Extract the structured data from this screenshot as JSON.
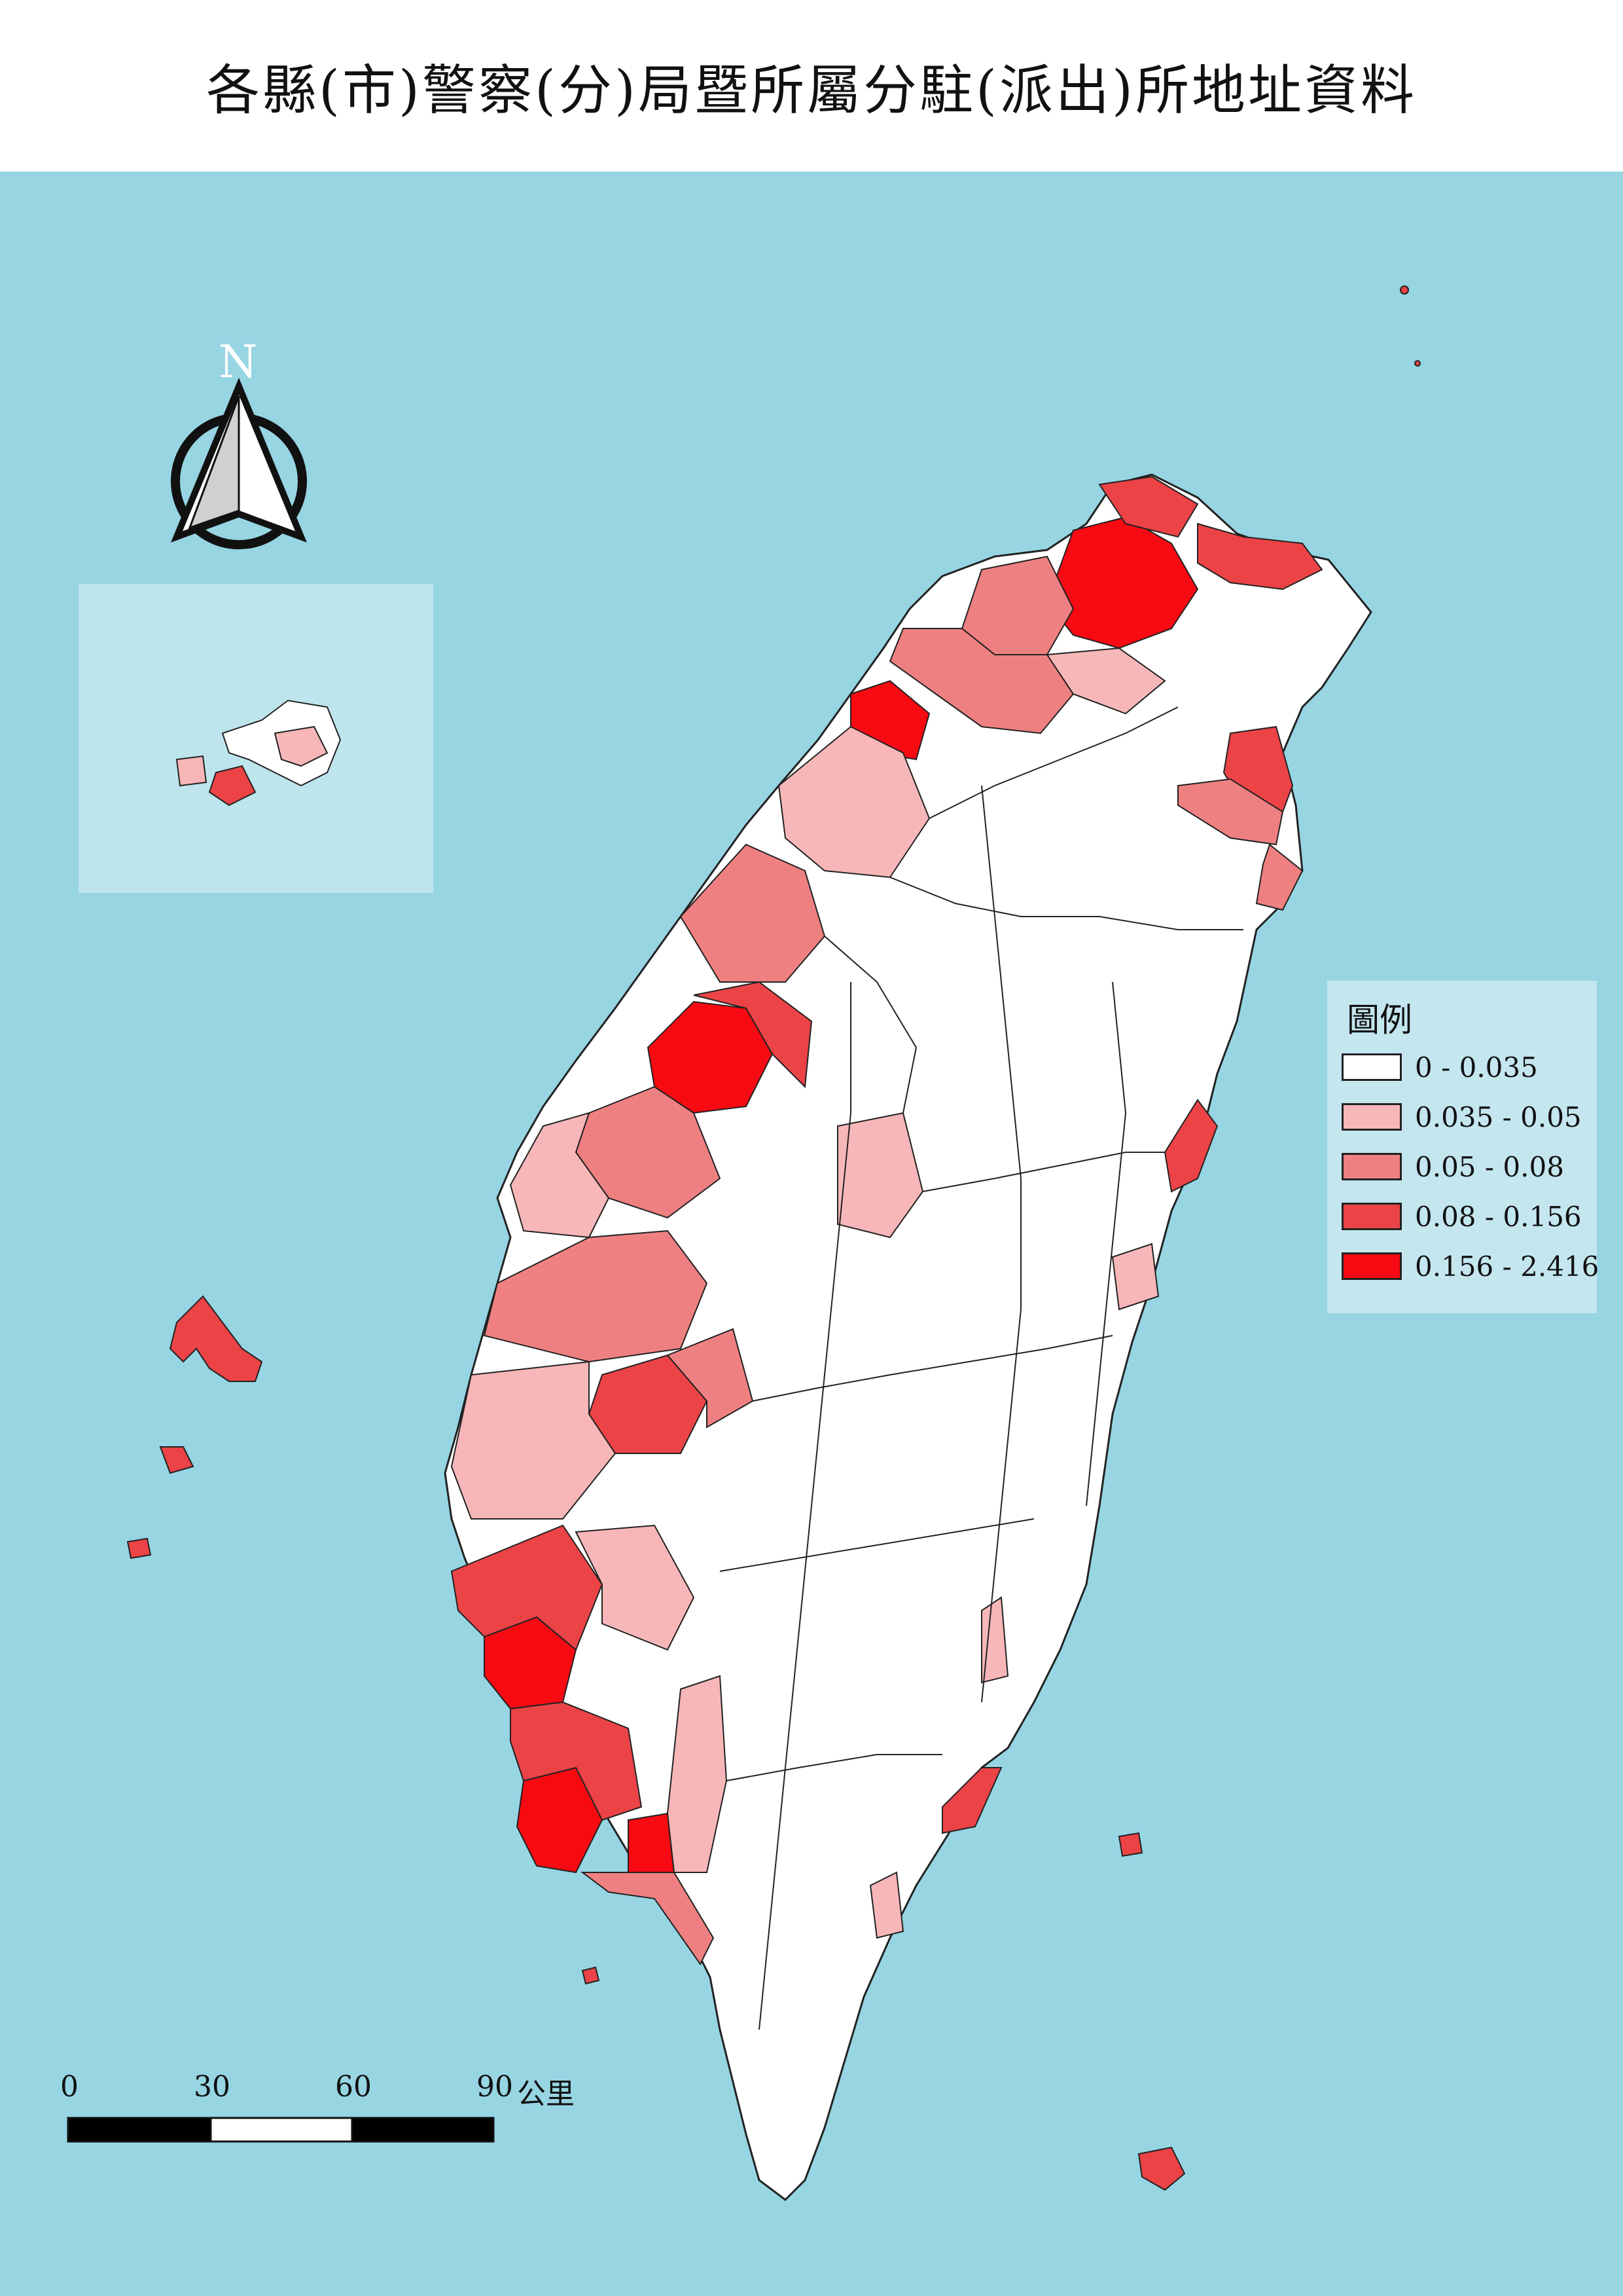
{
  "title": "各縣(市)警察(分)局暨所屬分駐(派出)所地址資料",
  "north_label": "N",
  "legend": {
    "title": "圖例",
    "classes": [
      {
        "label": "0 - 0.035",
        "color": "#ffffff"
      },
      {
        "label": "0.035 - 0.05",
        "color": "#f7b7b9"
      },
      {
        "label": "0.05 - 0.08",
        "color": "#ef8081"
      },
      {
        "label": "0.08 - 0.156",
        "color": "#ec4346"
      },
      {
        "label": "0.156 - 2.416",
        "color": "#f70a12"
      }
    ]
  },
  "scale_bar": {
    "ticks": [
      "0",
      "30",
      "60",
      "90"
    ],
    "unit": "公里"
  },
  "colors": {
    "sea": "#97d5e3",
    "inset_bg": "#bee5ee",
    "legend_bg": "#c4e6ef",
    "boundary": "#222222"
  }
}
